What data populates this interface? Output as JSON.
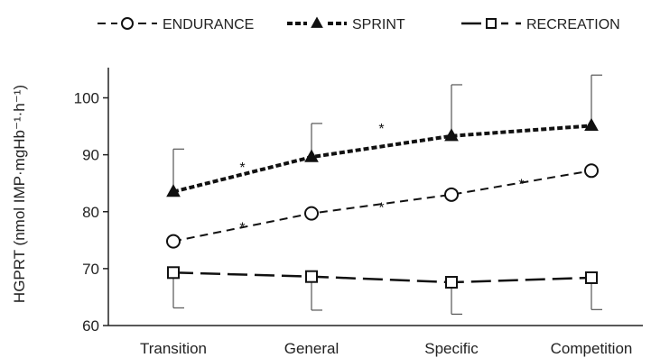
{
  "chart_data": {
    "type": "line",
    "title": "",
    "xlabel": "",
    "ylabel": "HGPRT (nmol IMP·mgHb⁻¹·h⁻¹)",
    "categories": [
      "Transition",
      "General",
      "Specific",
      "Competition"
    ],
    "ylim": [
      60,
      105
    ],
    "yticks": [
      60,
      70,
      80,
      90,
      100
    ],
    "grid": false,
    "legend_position": "top",
    "series": [
      {
        "name": "ENDURANCE",
        "marker": "circle",
        "line_style": "dashed",
        "values": [
          74.8,
          79.7,
          83.0,
          87.2
        ],
        "error_upper": [
          null,
          null,
          null,
          null
        ],
        "error_lower": [
          null,
          null,
          null,
          null
        ]
      },
      {
        "name": "SPRINT",
        "marker": "triangle",
        "line_style": "dotted-bold",
        "values": [
          83.5,
          89.6,
          93.3,
          95.1
        ],
        "error_upper": [
          91.0,
          95.5,
          102.3,
          104.0
        ],
        "error_lower": [
          null,
          null,
          null,
          null
        ]
      },
      {
        "name": "RECREATION",
        "marker": "square",
        "line_style": "long-dash",
        "values": [
          69.3,
          68.6,
          67.6,
          68.4
        ],
        "error_upper": [
          null,
          null,
          null,
          null
        ],
        "error_lower": [
          63.1,
          62.7,
          62.0,
          62.8
        ]
      }
    ],
    "annotations": [
      {
        "text": "*",
        "x_between": [
          0,
          1
        ],
        "y": 88.5
      },
      {
        "text": "*",
        "x_between": [
          1,
          2
        ],
        "y": 95.3
      },
      {
        "text": "*",
        "x_between": [
          0,
          1
        ],
        "y": 78.0
      },
      {
        "text": "*",
        "x_between": [
          1,
          2
        ],
        "y": 81.5
      },
      {
        "text": "*",
        "x_between": [
          2,
          3
        ],
        "y": 85.6
      }
    ]
  }
}
